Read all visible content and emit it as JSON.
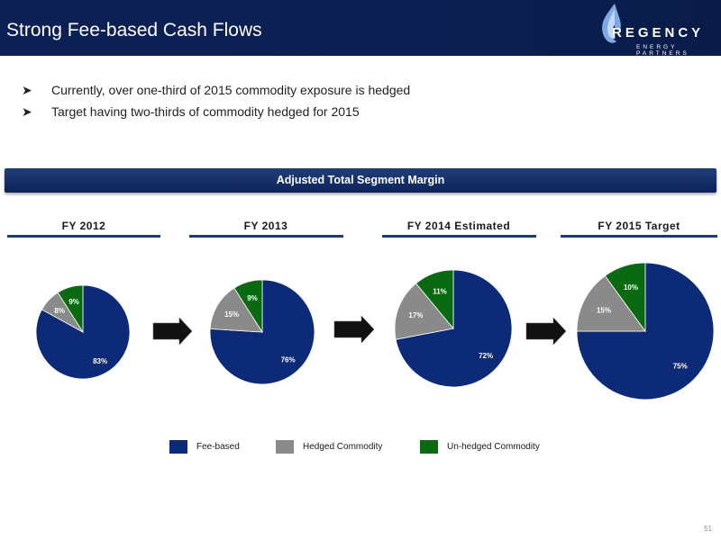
{
  "slide": {
    "title": "Strong Fee-based Cash Flows",
    "page_number": "51"
  },
  "logo": {
    "wordmark": "REGENCY",
    "tagline": "ENERGY PARTNERS"
  },
  "bullets": [
    "Currently, over one-third of 2015 commodity exposure is hedged",
    "Target having two-thirds of commodity hedged for 2015"
  ],
  "section_title": "Adjusted Total Segment Margin",
  "colors": {
    "fee_based": "#0c2a78",
    "hedged": "#8a8a8a",
    "unhedged": "#0a6a12",
    "header_bg": "#0b1f52"
  },
  "legend": [
    {
      "label": "Fee-based",
      "color": "#0c2a78"
    },
    {
      "label": "Hedged Commodity",
      "color": "#8a8a8a"
    },
    {
      "label": "Un-hedged Commodity",
      "color": "#0a6a12"
    }
  ],
  "chart_data": [
    {
      "type": "pie",
      "title": "FY 2012",
      "categories": [
        "Fee-based",
        "Hedged Commodity",
        "Un-hedged Commodity"
      ],
      "values": [
        83,
        8,
        9
      ],
      "labels": [
        "83%",
        "8%",
        "9%"
      ]
    },
    {
      "type": "pie",
      "title": "FY 2013",
      "categories": [
        "Fee-based",
        "Hedged Commodity",
        "Un-hedged Commodity"
      ],
      "values": [
        76,
        15,
        9
      ],
      "labels": [
        "76%",
        "15%",
        "9%"
      ]
    },
    {
      "type": "pie",
      "title": "FY 2014 Estimated",
      "categories": [
        "Fee-based",
        "Hedged Commodity",
        "Un-hedged Commodity"
      ],
      "values": [
        72,
        17,
        11
      ],
      "labels": [
        "72%",
        "17%",
        "11%"
      ]
    },
    {
      "type": "pie",
      "title": "FY 2015 Target",
      "categories": [
        "Fee-based",
        "Hedged Commodity",
        "Un-hedged Commodity"
      ],
      "values": [
        75,
        15,
        10
      ],
      "labels": [
        "75%",
        "15%",
        "10%"
      ]
    }
  ]
}
